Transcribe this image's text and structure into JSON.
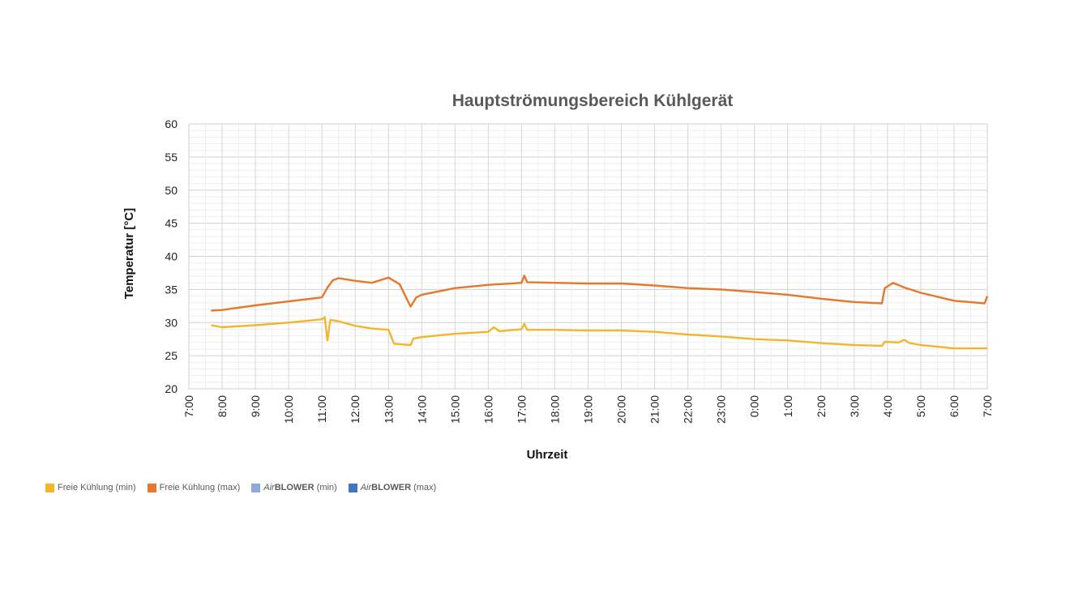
{
  "chart_data": {
    "type": "line",
    "title": "Hauptströmungsbereich Kühlgerät",
    "xlabel": "Uhrzeit",
    "ylabel": "Temperatur [°C]",
    "ylim": [
      20,
      60
    ],
    "yticks": [
      "20",
      "25",
      "30",
      "35",
      "40",
      "45",
      "50",
      "55",
      "60"
    ],
    "x_ticks": [
      "7:00",
      "8:00",
      "9:00",
      "10:00",
      "11:00",
      "12:00",
      "13:00",
      "14:00",
      "15:00",
      "16:00",
      "17:00",
      "18:00",
      "19:00",
      "20:00",
      "21:00",
      "22:00",
      "23:00",
      "0:00",
      "1:00",
      "2:00",
      "3:00",
      "4:00",
      "5:00",
      "6:00",
      "7:00"
    ],
    "grid": true,
    "legend_position": "bottom-left",
    "series": [
      {
        "name": "Freie Kühlung (min)",
        "color": "#f3b62b",
        "points": [
          [
            "7:40",
            29.6
          ],
          [
            "8:00",
            29.3
          ],
          [
            "9:00",
            29.6
          ],
          [
            "10:00",
            30.0
          ],
          [
            "11:00",
            30.5
          ],
          [
            "11:05",
            30.8
          ],
          [
            "11:10",
            27.3
          ],
          [
            "11:15",
            30.4
          ],
          [
            "11:30",
            30.2
          ],
          [
            "12:00",
            29.5
          ],
          [
            "12:30",
            29.1
          ],
          [
            "13:00",
            28.9
          ],
          [
            "13:10",
            26.8
          ],
          [
            "13:40",
            26.6
          ],
          [
            "13:45",
            27.6
          ],
          [
            "14:00",
            27.8
          ],
          [
            "15:00",
            28.3
          ],
          [
            "16:00",
            28.6
          ],
          [
            "16:10",
            29.3
          ],
          [
            "16:20",
            28.7
          ],
          [
            "17:00",
            29.0
          ],
          [
            "17:05",
            29.8
          ],
          [
            "17:10",
            28.9
          ],
          [
            "18:00",
            28.9
          ],
          [
            "19:00",
            28.8
          ],
          [
            "20:00",
            28.8
          ],
          [
            "21:00",
            28.6
          ],
          [
            "22:00",
            28.2
          ],
          [
            "23:00",
            27.9
          ],
          [
            "0:00",
            27.5
          ],
          [
            "1:00",
            27.3
          ],
          [
            "2:00",
            26.9
          ],
          [
            "3:00",
            26.6
          ],
          [
            "3:50",
            26.5
          ],
          [
            "3:55",
            27.1
          ],
          [
            "4:20",
            27.0
          ],
          [
            "4:30",
            27.4
          ],
          [
            "4:40",
            26.9
          ],
          [
            "5:00",
            26.6
          ],
          [
            "6:00",
            26.1
          ],
          [
            "7:00",
            26.1
          ]
        ]
      },
      {
        "name": "Freie Kühlung (max)",
        "color": "#e7772c",
        "points": [
          [
            "7:40",
            31.8
          ],
          [
            "8:00",
            31.9
          ],
          [
            "9:00",
            32.6
          ],
          [
            "10:00",
            33.2
          ],
          [
            "11:00",
            33.8
          ],
          [
            "11:10",
            35.3
          ],
          [
            "11:20",
            36.4
          ],
          [
            "11:30",
            36.7
          ],
          [
            "12:00",
            36.3
          ],
          [
            "12:30",
            36.0
          ],
          [
            "13:00",
            36.8
          ],
          [
            "13:20",
            35.8
          ],
          [
            "13:40",
            32.4
          ],
          [
            "13:50",
            33.8
          ],
          [
            "14:00",
            34.2
          ],
          [
            "15:00",
            35.2
          ],
          [
            "16:00",
            35.7
          ],
          [
            "17:00",
            36.0
          ],
          [
            "17:05",
            37.1
          ],
          [
            "17:10",
            36.1
          ],
          [
            "18:00",
            36.0
          ],
          [
            "19:00",
            35.9
          ],
          [
            "20:00",
            35.9
          ],
          [
            "21:00",
            35.6
          ],
          [
            "22:00",
            35.2
          ],
          [
            "23:00",
            35.0
          ],
          [
            "0:00",
            34.6
          ],
          [
            "1:00",
            34.2
          ],
          [
            "2:00",
            33.6
          ],
          [
            "3:00",
            33.1
          ],
          [
            "3:50",
            32.9
          ],
          [
            "3:55",
            35.2
          ],
          [
            "4:10",
            36.0
          ],
          [
            "4:30",
            35.3
          ],
          [
            "5:00",
            34.5
          ],
          [
            "6:00",
            33.3
          ],
          [
            "6:55",
            32.9
          ],
          [
            "7:00",
            34.0
          ]
        ]
      }
    ],
    "legend": [
      {
        "label": "Freie Kühlung (min)",
        "color": "#f3b62b"
      },
      {
        "label": "Freie Kühlung (max)",
        "color": "#e7772c"
      },
      {
        "label_prefix": "Air",
        "label_bold": "BLOWER",
        "label_suffix": " (min)",
        "color": "#8eaadb"
      },
      {
        "label_prefix": "Air",
        "label_bold": "BLOWER",
        "label_suffix": " (max)",
        "color": "#4472c4"
      }
    ]
  }
}
